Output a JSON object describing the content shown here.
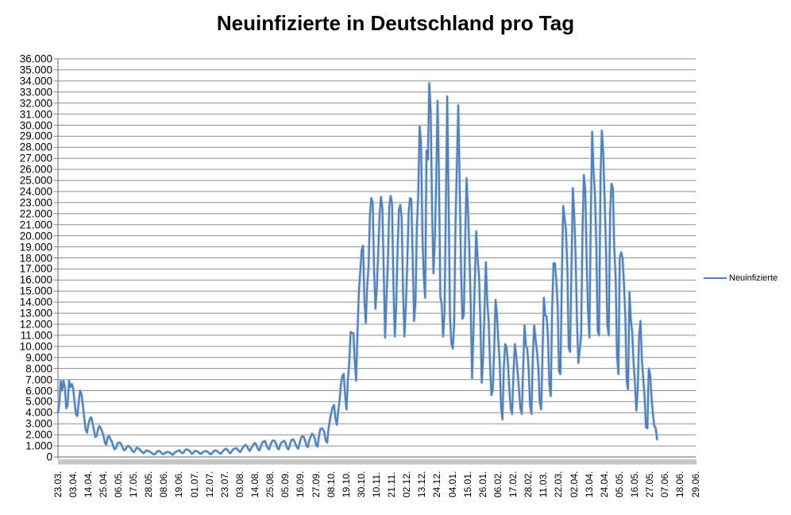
{
  "title": "Neuinfizierte in Deutschland pro Tag",
  "legend": {
    "series_label": "Neuinfizierte",
    "line_color": "#4F81BD"
  },
  "colors": {
    "series_line": "#4F81BD",
    "series_halo": "#b9cbe3",
    "gridline": "#8e8e8e",
    "axis": "#808080",
    "text": "#000000"
  },
  "axes": {
    "y_tick_labels": [
      "36.000",
      "35.000",
      "34.000",
      "33.000",
      "32.000",
      "31.000",
      "30.000",
      "29.000",
      "28.000",
      "27.000",
      "26.000",
      "25.000",
      "24.000",
      "23.000",
      "22.000",
      "21.000",
      "20.000",
      "19.000",
      "18.000",
      "17.000",
      "16.000",
      "15.000",
      "14.000",
      "13.000",
      "12.000",
      "11.000",
      "10.000",
      "9.000",
      "8.000",
      "7.000",
      "6.000",
      "5.000",
      "4.000",
      "3.000",
      "2.000",
      "1.000",
      "0"
    ],
    "x_tick_labels": [
      "23.03.",
      "03.04.",
      "14.04.",
      "25.04.",
      "06.05.",
      "17.05.",
      "28.05.",
      "08.06.",
      "19.06.",
      "01.07.",
      "12.07.",
      "23.07.",
      "03.08.",
      "14.08.",
      "25.08.",
      "05.09.",
      "16.09.",
      "27.09.",
      "08.10.",
      "19.10.",
      "30.10.",
      "10.11.",
      "21.11.",
      "02.12.",
      "13.12.",
      "24.12.",
      "04.01.",
      "15.01.",
      "26.01.",
      "06.02.",
      "17.02.",
      "28.02.",
      "11.03.",
      "22.03.",
      "02.04.",
      "13.04.",
      "24.04.",
      "05.05.",
      "16.05.",
      "27.05.",
      "07.06.",
      "18.06.",
      "29.06."
    ]
  },
  "chart_data": {
    "type": "line",
    "title": "Neuinfizierte in Deutschland pro Tag",
    "xlabel": "",
    "ylabel": "",
    "ylim": [
      0,
      36000
    ],
    "y_major_step": 1000,
    "grid": true,
    "legend_position": "right",
    "x_axis_note": "daily categories from 23.03.2020 to 29.06.2021, tick label every 11 days",
    "total_categories": 463,
    "label_every_n_categories": 11,
    "series": [
      {
        "name": "Neuinfizierte",
        "color": "#4F81BD",
        "start_category": 0,
        "values": [
          4000,
          4900,
          6900,
          6000,
          6900,
          6300,
          4400,
          4700,
          6900,
          6300,
          6600,
          6200,
          5000,
          3900,
          3700,
          4900,
          6000,
          5700,
          4700,
          3600,
          2500,
          2200,
          2900,
          3400,
          3600,
          3100,
          2500,
          1800,
          1900,
          2500,
          2800,
          2600,
          2300,
          1900,
          1300,
          1100,
          1800,
          1900,
          1600,
          1400,
          1000,
          700,
          800,
          1200,
          1300,
          1300,
          1100,
          800,
          600,
          700,
          950,
          1000,
          900,
          750,
          500,
          450,
          600,
          850,
          800,
          700,
          550,
          450,
          350,
          450,
          600,
          550,
          500,
          450,
          350,
          250,
          250,
          350,
          500,
          550,
          500,
          350,
          250,
          300,
          400,
          450,
          450,
          400,
          300,
          200,
          300,
          450,
          500,
          550,
          600,
          450,
          350,
          400,
          600,
          700,
          650,
          600,
          450,
          300,
          350,
          550,
          550,
          500,
          400,
          300,
          300,
          450,
          500,
          550,
          500,
          400,
          300,
          250,
          400,
          550,
          600,
          550,
          450,
          350,
          300,
          450,
          600,
          700,
          750,
          600,
          400,
          350,
          550,
          700,
          750,
          800,
          700,
          550,
          450,
          650,
          850,
          1000,
          1100,
          950,
          700,
          550,
          800,
          1000,
          1200,
          1250,
          1000,
          700,
          600,
          1000,
          1300,
          1400,
          1450,
          1100,
          800,
          700,
          1100,
          1400,
          1500,
          1450,
          1200,
          800,
          700,
          1100,
          1300,
          1400,
          1450,
          1200,
          800,
          700,
          1100,
          1500,
          1600,
          1500,
          1200,
          900,
          750,
          1200,
          1700,
          1900,
          1800,
          1500,
          1000,
          900,
          1500,
          1800,
          2100,
          2000,
          1700,
          1100,
          950,
          1800,
          2500,
          2600,
          2500,
          2200,
          1500,
          1300,
          2600,
          3300,
          4000,
          4500,
          4700,
          3500,
          2900,
          4100,
          5100,
          6600,
          7300,
          7500,
          5600,
          4300,
          6900,
          8500,
          11300,
          11200,
          11200,
          8700,
          6900,
          11400,
          14900,
          16800,
          18700,
          19100,
          14200,
          12100,
          15400,
          17200,
          21900,
          23400,
          23000,
          16900,
          13400,
          15300,
          18500,
          21900,
          23500,
          22500,
          16700,
          10800,
          14400,
          17600,
          22600,
          23600,
          22900,
          15700,
          10900,
          13600,
          18600,
          22300,
          22800,
          21600,
          15000,
          10900,
          13600,
          17300,
          22000,
          23400,
          23300,
          17800,
          12300,
          14000,
          20800,
          23700,
          29900,
          28400,
          20200,
          16300,
          14400,
          27700,
          26900,
          33800,
          31300,
          22500,
          16600,
          19500,
          24700,
          32200,
          25500,
          14500,
          13800,
          10900,
          12900,
          22500,
          32600,
          22900,
          12700,
          10300,
          9800,
          11900,
          21200,
          26400,
          31800,
          24700,
          16900,
          12500,
          12800,
          19600,
          25200,
          22400,
          18700,
          13900,
          7100,
          11400,
          16000,
          20400,
          17900,
          16400,
          12300,
          6700,
          9000,
          13200,
          17600,
          14000,
          12300,
          8500,
          5600,
          6100,
          9700,
          14200,
          12900,
          10500,
          8600,
          4500,
          3400,
          8100,
          10200,
          9900,
          8400,
          6100,
          4400,
          3900,
          7600,
          10200,
          9100,
          7700,
          6100,
          4400,
          3900,
          8000,
          11900,
          10000,
          9800,
          7900,
          4700,
          3900,
          9000,
          11900,
          10600,
          9600,
          8100,
          5000,
          4300,
          9100,
          14400,
          12800,
          12700,
          10800,
          6600,
          5500,
          13400,
          17500,
          17500,
          16000,
          13700,
          7700,
          7500,
          15800,
          22700,
          21600,
          20500,
          17200,
          9900,
          9500,
          17100,
          24300,
          21900,
          18100,
          12200,
          8500,
          9700,
          11000,
          20400,
          25500,
          24100,
          17900,
          13200,
          10800,
          21700,
          29400,
          25800,
          23800,
          19200,
          11400,
          11000,
          24900,
          29500,
          27500,
          23400,
          18800,
          11900,
          11000,
          22200,
          24700,
          24300,
          18900,
          16300,
          9200,
          7500,
          18000,
          18500,
          18000,
          15700,
          12700,
          6900,
          6100,
          14900,
          12400,
          11300,
          8500,
          6700,
          4200,
          6100,
          11000,
          12300,
          8800,
          7100,
          5400,
          2700,
          2600,
          8000,
          7400,
          5400,
          3900,
          2800,
          2600,
          1600
        ]
      }
    ]
  }
}
